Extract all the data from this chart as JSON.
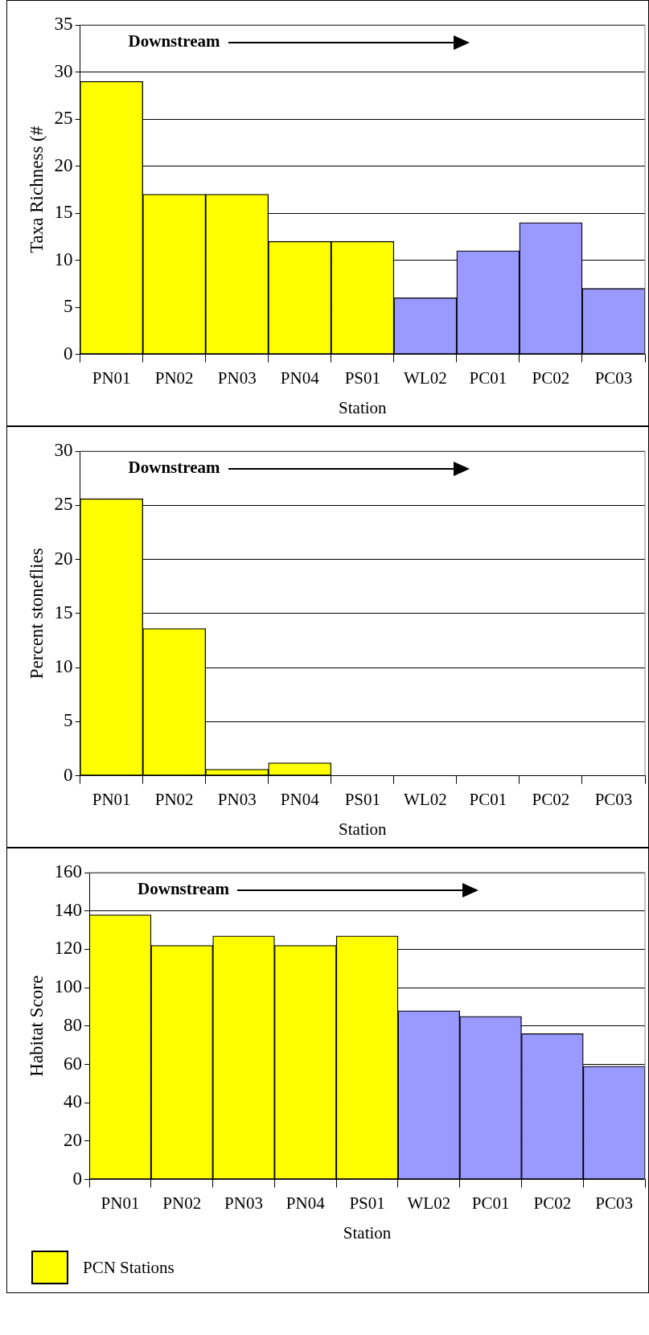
{
  "chart_data": [
    {
      "type": "bar",
      "xlabel": "Station",
      "ylabel": "Taxa Richness (#",
      "categories": [
        "PN01",
        "PN02",
        "PN03",
        "PN04",
        "PS01",
        "WL02",
        "PC01",
        "PC02",
        "PC03"
      ],
      "stacked": true,
      "series": [
        {
          "color": "#ffff00",
          "values": [
            29,
            17,
            17,
            12,
            12,
            null,
            null,
            null,
            null
          ]
        },
        {
          "color": "#9999ff",
          "values": [
            null,
            null,
            null,
            null,
            null,
            6,
            11,
            14,
            7
          ]
        }
      ],
      "ylim": [
        0,
        35
      ],
      "yticks": [
        0,
        5,
        10,
        15,
        20,
        25,
        30,
        35
      ],
      "grid": "y",
      "legend": false,
      "annotations": [
        "Downstream"
      ]
    },
    {
      "type": "bar",
      "xlabel": "Station",
      "ylabel": "Percent stoneflies",
      "categories": [
        "PN01",
        "PN02",
        "PN03",
        "PN04",
        "PS01",
        "WL02",
        "PC01",
        "PC02",
        "PC03"
      ],
      "stacked": true,
      "series": [
        {
          "color": "#ffff00",
          "values": [
            25.6,
            13.6,
            0.6,
            1.2,
            0,
            null,
            null,
            null,
            null
          ]
        },
        {
          "color": "#9999ff",
          "values": [
            null,
            null,
            null,
            null,
            null,
            0,
            0,
            0,
            0
          ]
        }
      ],
      "ylim": [
        0,
        30
      ],
      "yticks": [
        0,
        5,
        10,
        15,
        20,
        25,
        30
      ],
      "grid": "y",
      "legend": false,
      "annotations": [
        "Downstream"
      ]
    },
    {
      "type": "bar",
      "xlabel": "Station",
      "ylabel": "Habitat Score",
      "categories": [
        "PN01",
        "PN02",
        "PN03",
        "PN04",
        "PS01",
        "WL02",
        "PC01",
        "PC02",
        "PC03"
      ],
      "stacked": true,
      "series": [
        {
          "name": "PCN Stations",
          "color": "#ffff00",
          "values": [
            138,
            122,
            127,
            122,
            127,
            null,
            null,
            null,
            null
          ]
        },
        {
          "color": "#9999ff",
          "values": [
            null,
            null,
            null,
            null,
            null,
            88,
            85,
            76,
            59
          ]
        }
      ],
      "ylim": [
        0,
        160
      ],
      "yticks": [
        0,
        20,
        40,
        60,
        80,
        100,
        120,
        140,
        160
      ],
      "grid": "y",
      "legend": "bottom left",
      "annotations": [
        "Downstream"
      ]
    }
  ]
}
